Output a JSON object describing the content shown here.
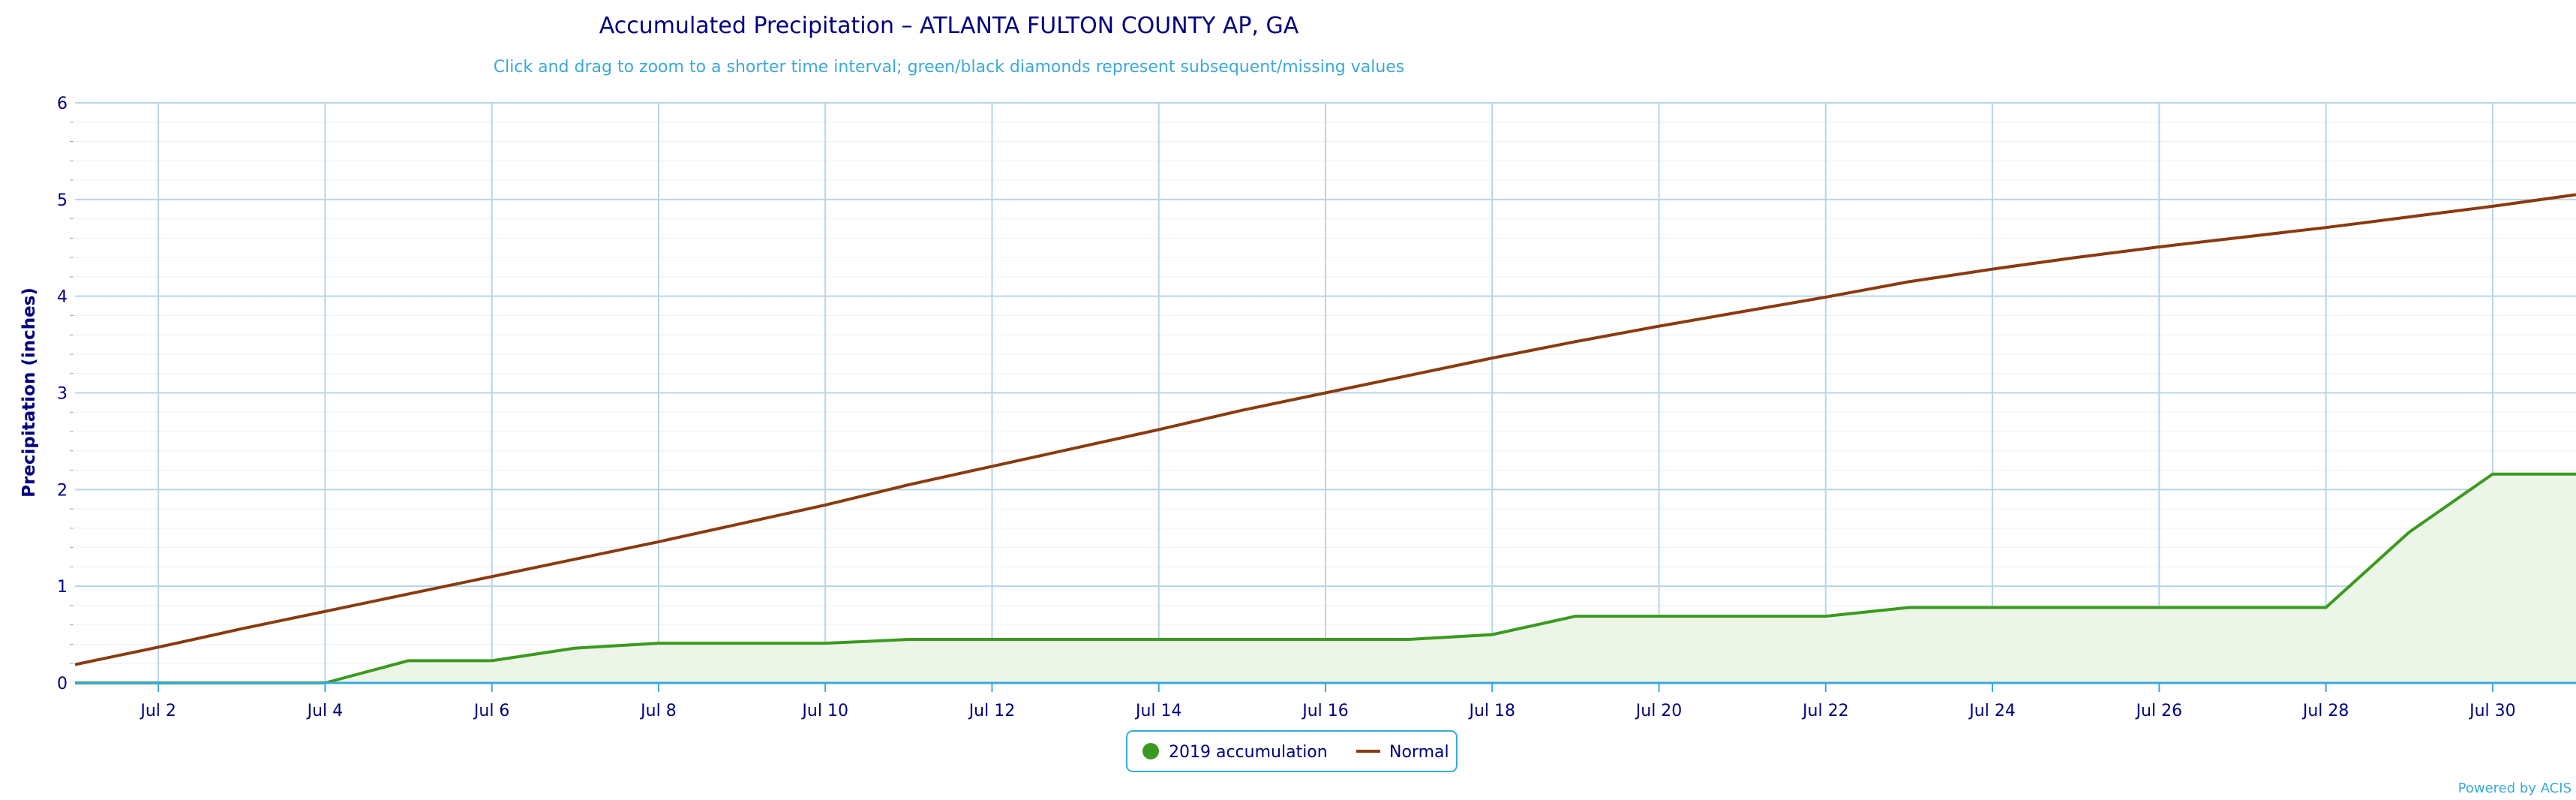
{
  "chart_data": {
    "type": "area",
    "title": "Accumulated Precipitation – ATLANTA FULTON COUNTY AP, GA",
    "subtitle": "Click and drag to zoom to a shorter time interval; green/black diamonds represent subsequent/missing values",
    "ylabel": "Precipitation (inches)",
    "xlabel": "",
    "ylim": [
      0,
      6
    ],
    "yticks": [
      "0",
      "1",
      "2",
      "3",
      "4",
      "5",
      "6"
    ],
    "xlim": [
      "2019-07-01",
      "2019-07-31"
    ],
    "xticks": [
      "Jul 2",
      "Jul 4",
      "Jul 6",
      "Jul 8",
      "Jul 10",
      "Jul 12",
      "Jul 14",
      "Jul 16",
      "Jul 18",
      "Jul 20",
      "Jul 22",
      "Jul 24",
      "Jul 26",
      "Jul 28",
      "Jul 30"
    ],
    "grid": true,
    "legend_position": "bottom-center",
    "credit": "Powered by ACIS",
    "x": [
      "2019-07-01",
      "2019-07-02",
      "2019-07-03",
      "2019-07-04",
      "2019-07-05",
      "2019-07-06",
      "2019-07-07",
      "2019-07-08",
      "2019-07-09",
      "2019-07-10",
      "2019-07-11",
      "2019-07-12",
      "2019-07-13",
      "2019-07-14",
      "2019-07-15",
      "2019-07-16",
      "2019-07-17",
      "2019-07-18",
      "2019-07-19",
      "2019-07-20",
      "2019-07-21",
      "2019-07-22",
      "2019-07-23",
      "2019-07-24",
      "2019-07-25",
      "2019-07-26",
      "2019-07-27",
      "2019-07-28",
      "2019-07-29",
      "2019-07-30",
      "2019-07-31"
    ],
    "series": [
      {
        "name": "2019 accumulation",
        "type": "area",
        "color": "#3a9a1e",
        "fill": "#edf5e8",
        "values": [
          0,
          0,
          0,
          0,
          0.23,
          0.23,
          0.36,
          0.41,
          0.41,
          0.41,
          0.45,
          0.45,
          0.45,
          0.45,
          0.45,
          0.45,
          0.45,
          0.5,
          0.69,
          0.69,
          0.69,
          0.69,
          0.78,
          0.78,
          0.78,
          0.78,
          0.78,
          0.78,
          1.56,
          2.16,
          2.16
        ]
      },
      {
        "name": "Normal",
        "type": "line",
        "color": "#8b3a0f",
        "values": [
          0.19,
          0.37,
          0.56,
          0.74,
          0.92,
          1.1,
          1.28,
          1.46,
          1.65,
          1.84,
          2.05,
          2.24,
          2.43,
          2.62,
          2.82,
          3.0,
          3.18,
          3.36,
          3.53,
          3.69,
          3.84,
          3.99,
          4.15,
          4.28,
          4.4,
          4.51,
          4.61,
          4.71,
          4.82,
          4.93,
          5.05
        ]
      }
    ]
  }
}
